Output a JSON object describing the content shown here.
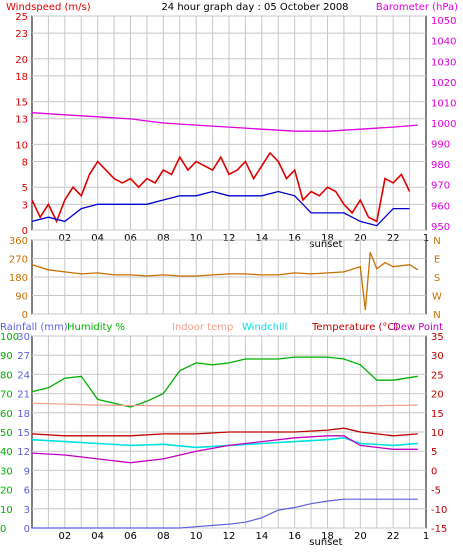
{
  "title": "24 hour graph day : 05 October 2008",
  "colors": {
    "windspeed": "#e00000",
    "windavg": "#0000d0",
    "barometer": "#e000e0",
    "direction": "#c87000",
    "rainfall": "#6060e0",
    "humidity": "#00b000",
    "indoor": "#f0a090",
    "windchill": "#00e0e0",
    "temperature": "#c00000",
    "dewpoint": "#c000c0",
    "grid": "#c8c8c8"
  },
  "chart_data": [
    {
      "type": "line",
      "id": "wind",
      "left_label": "Windspeed (m/s)",
      "right_label": "Barometer (hPa)",
      "x_ticks": [
        "02",
        "04",
        "06",
        "08",
        "10",
        "12",
        "14",
        "16",
        "18",
        "20",
        "22",
        "1"
      ],
      "x_annotation": "sunset",
      "left_ticks": [
        0,
        3,
        5,
        8,
        10,
        13,
        15,
        18,
        20,
        23,
        25
      ],
      "right_ticks": [
        950,
        960,
        970,
        980,
        990,
        1000,
        1010,
        1020,
        1030,
        1040,
        1050
      ],
      "left_range": [
        0,
        25
      ],
      "right_range": [
        948,
        1052
      ],
      "series": [
        {
          "name": "Windspeed (m/s)",
          "axis": "left",
          "x": [
            0.0,
            0.5,
            1.0,
            1.5,
            2.0,
            2.5,
            3.0,
            3.5,
            4.0,
            4.5,
            5.0,
            5.5,
            6.0,
            6.5,
            7.0,
            7.5,
            8.0,
            8.5,
            9.0,
            9.5,
            10.0,
            10.5,
            11.0,
            11.5,
            12.0,
            12.5,
            13.0,
            13.5,
            14.0,
            14.5,
            15.0,
            15.5,
            16.0,
            16.5,
            17.0,
            17.5,
            18.0,
            18.5,
            19.0,
            19.5,
            20.0,
            20.5,
            21.0,
            21.5,
            22.0,
            22.5,
            23.0
          ],
          "values": [
            3.5,
            1.5,
            3.0,
            1.0,
            3.5,
            5.0,
            4.0,
            6.5,
            8.0,
            7.0,
            6.0,
            5.5,
            6.0,
            5.0,
            6.0,
            5.5,
            7.0,
            6.5,
            8.5,
            7.0,
            8.0,
            7.5,
            7.0,
            8.5,
            6.5,
            7.0,
            8.0,
            6.0,
            7.5,
            9.0,
            8.0,
            6.0,
            7.0,
            3.5,
            4.5,
            4.0,
            5.0,
            4.5,
            3.0,
            2.0,
            3.5,
            1.5,
            1.0,
            6.0,
            5.5,
            6.5,
            4.5
          ]
        },
        {
          "name": "Average windspeed",
          "axis": "left",
          "x": [
            0.0,
            1.0,
            2.0,
            3.0,
            4.0,
            5.0,
            6.0,
            7.0,
            8.0,
            9.0,
            10.0,
            11.0,
            12.0,
            13.0,
            14.0,
            15.0,
            16.0,
            17.0,
            18.0,
            19.0,
            20.0,
            21.0,
            22.0,
            23.0
          ],
          "values": [
            1.0,
            1.5,
            1.0,
            2.5,
            3.0,
            3.0,
            3.0,
            3.0,
            3.5,
            4.0,
            4.0,
            4.5,
            4.0,
            4.0,
            4.0,
            4.5,
            4.0,
            2.0,
            2.0,
            2.0,
            1.0,
            0.5,
            2.5,
            2.5
          ]
        },
        {
          "name": "Barometer (hPa)",
          "axis": "right",
          "x": [
            0.0,
            2.0,
            4.0,
            6.0,
            8.0,
            10.0,
            12.0,
            14.0,
            16.0,
            18.0,
            20.0,
            22.0,
            23.5
          ],
          "values": [
            1005,
            1004,
            1003,
            1002,
            1000,
            999,
            998,
            997,
            996,
            996,
            997,
            998,
            999
          ]
        }
      ]
    },
    {
      "type": "line",
      "id": "direction",
      "left_ticks": [
        0,
        90,
        180,
        270,
        360
      ],
      "right_labels": [
        "N",
        "W",
        "S",
        "E",
        "N"
      ],
      "left_range": [
        0,
        360
      ],
      "series": [
        {
          "name": "Wind direction",
          "x": [
            0.0,
            1.0,
            2.0,
            3.0,
            4.0,
            5.0,
            6.0,
            7.0,
            8.0,
            9.0,
            10.0,
            11.0,
            12.0,
            13.0,
            14.0,
            15.0,
            16.0,
            17.0,
            18.0,
            19.0,
            20.0,
            20.3,
            20.6,
            21.0,
            21.5,
            22.0,
            23.0,
            23.5
          ],
          "values": [
            240,
            215,
            205,
            195,
            200,
            190,
            190,
            185,
            190,
            185,
            185,
            190,
            195,
            195,
            190,
            190,
            200,
            195,
            200,
            205,
            230,
            20,
            300,
            220,
            250,
            230,
            240,
            215
          ]
        }
      ]
    },
    {
      "type": "line",
      "id": "temp",
      "labels": [
        "Rainfall (mm)",
        "Humidity %",
        "Indoor temp",
        "Windchill",
        "Temperature (°C)",
        "Dew Point"
      ],
      "x_ticks": [
        "02",
        "04",
        "06",
        "08",
        "10",
        "12",
        "14",
        "16",
        "18",
        "20",
        "22",
        "1"
      ],
      "x_annotation": "sunset",
      "humidity_ticks": [
        0,
        10,
        20,
        30,
        40,
        50,
        60,
        70,
        80,
        90,
        100
      ],
      "rainfall_ticks": [
        0,
        3,
        6,
        9,
        12,
        15,
        18,
        21,
        24,
        27,
        30
      ],
      "temp_ticks": [
        -15,
        -10,
        -5,
        0,
        5,
        10,
        15,
        20,
        25,
        30,
        35
      ],
      "humidity_range": [
        0,
        100
      ],
      "temp_range": [
        -15,
        35
      ],
      "series": [
        {
          "name": "Humidity %",
          "axis": "humidity",
          "x": [
            0.0,
            1.0,
            2.0,
            3.0,
            4.0,
            5.0,
            6.0,
            7.0,
            8.0,
            9.0,
            10.0,
            11.0,
            12.0,
            13.0,
            14.0,
            15.0,
            16.0,
            17.0,
            18.0,
            19.0,
            20.0,
            21.0,
            22.0,
            23.5
          ],
          "values": [
            71,
            73,
            78,
            79,
            67,
            65,
            63,
            66,
            70,
            82,
            86,
            85,
            86,
            88,
            88,
            88,
            89,
            89,
            89,
            88,
            85,
            77,
            77,
            79
          ]
        },
        {
          "name": "Indoor temp",
          "axis": "temp",
          "x": [
            0.0,
            4.0,
            8.0,
            12.0,
            16.0,
            20.0,
            23.5
          ],
          "values": [
            17.5,
            17.0,
            16.8,
            16.8,
            16.8,
            16.8,
            17.0
          ]
        },
        {
          "name": "Windchill",
          "axis": "temp",
          "x": [
            0.0,
            2.0,
            4.0,
            6.0,
            8.0,
            10.0,
            12.0,
            14.0,
            16.0,
            18.0,
            19.0,
            20.0,
            22.0,
            23.5
          ],
          "values": [
            8.0,
            7.5,
            7.0,
            6.5,
            6.8,
            6.0,
            6.5,
            7.0,
            7.5,
            8.0,
            8.5,
            7.0,
            6.5,
            7.0
          ]
        },
        {
          "name": "Temperature (°C)",
          "axis": "temp",
          "x": [
            0.0,
            2.0,
            4.0,
            6.0,
            8.0,
            10.0,
            12.0,
            14.0,
            16.0,
            18.0,
            19.0,
            20.0,
            22.0,
            23.5
          ],
          "values": [
            9.5,
            9.0,
            9.0,
            9.0,
            9.5,
            9.5,
            10.0,
            10.0,
            10.0,
            10.5,
            11.0,
            10.0,
            9.0,
            9.5
          ]
        },
        {
          "name": "Dew Point",
          "axis": "temp",
          "x": [
            0.0,
            2.0,
            4.0,
            6.0,
            8.0,
            10.0,
            12.0,
            14.0,
            16.0,
            18.0,
            19.0,
            20.0,
            22.0,
            23.5
          ],
          "values": [
            4.5,
            4.0,
            3.0,
            2.0,
            3.0,
            5.0,
            6.5,
            7.5,
            8.5,
            9.0,
            9.0,
            6.5,
            5.5,
            5.5
          ]
        },
        {
          "name": "Rainfall (mm)",
          "axis": "rainfall",
          "x": [
            0.0,
            9.0,
            10.0,
            11.0,
            12.0,
            13.0,
            14.0,
            15.0,
            16.0,
            17.0,
            18.0,
            19.0,
            22.0,
            23.5
          ],
          "values": [
            0,
            0,
            0.2,
            0.4,
            0.6,
            0.9,
            1.6,
            2.8,
            3.2,
            3.8,
            4.2,
            4.5,
            4.5,
            4.5
          ]
        }
      ]
    }
  ]
}
